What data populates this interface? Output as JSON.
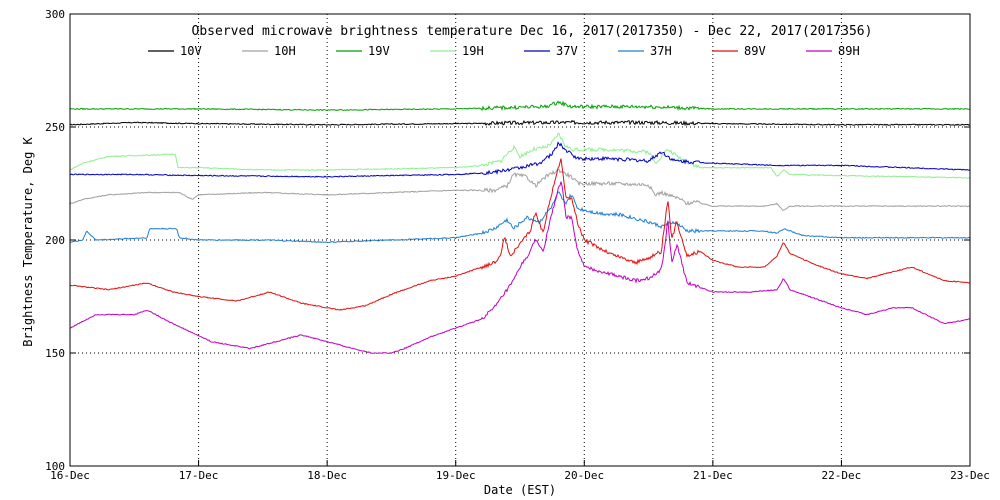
{
  "chart_data": {
    "type": "line",
    "title": "Observed microwave brightness temperature Dec 16, 2017(2017350) - Dec 22, 2017(2017356)",
    "xlabel": "Date (EST)",
    "ylabel": "Brightness Temperature, Deg K",
    "xlim": [
      0,
      7
    ],
    "ylim": [
      100,
      300
    ],
    "x_ticks": [
      {
        "x": 0,
        "label": "16-Dec"
      },
      {
        "x": 1,
        "label": "17-Dec"
      },
      {
        "x": 2,
        "label": "18-Dec"
      },
      {
        "x": 3,
        "label": "19-Dec"
      },
      {
        "x": 4,
        "label": "20-Dec"
      },
      {
        "x": 5,
        "label": "21-Dec"
      },
      {
        "x": 6,
        "label": "22-Dec"
      },
      {
        "x": 7,
        "label": "23-Dec"
      }
    ],
    "y_ticks": [
      {
        "y": 100,
        "label": "100"
      },
      {
        "y": 150,
        "label": "150"
      },
      {
        "y": 200,
        "label": "200"
      },
      {
        "y": 250,
        "label": "250"
      },
      {
        "y": 300,
        "label": "300"
      }
    ],
    "grid": "dotted",
    "legend_position": "top",
    "series": [
      {
        "name": "10V",
        "color": "#000000",
        "points": [
          [
            0,
            251
          ],
          [
            0.5,
            252
          ],
          [
            1,
            251.5
          ],
          [
            2,
            251
          ],
          [
            3,
            251.5
          ],
          [
            3.8,
            252
          ],
          [
            4.5,
            252
          ],
          [
            5,
            251.5
          ],
          [
            6,
            251
          ],
          [
            7,
            251
          ]
        ]
      },
      {
        "name": "10H",
        "color": "#a0a0a0",
        "points": [
          [
            0,
            216
          ],
          [
            0.1,
            218
          ],
          [
            0.3,
            220
          ],
          [
            0.6,
            221
          ],
          [
            0.85,
            221
          ],
          [
            0.95,
            218
          ],
          [
            1.0,
            220
          ],
          [
            1.5,
            221
          ],
          [
            2,
            220
          ],
          [
            2.5,
            221
          ],
          [
            3.0,
            222
          ],
          [
            3.3,
            222
          ],
          [
            3.4,
            224
          ],
          [
            3.45,
            229
          ],
          [
            3.55,
            228
          ],
          [
            3.62,
            224
          ],
          [
            3.7,
            228
          ],
          [
            3.8,
            231
          ],
          [
            3.9,
            228
          ],
          [
            3.95,
            225
          ],
          [
            4.2,
            225
          ],
          [
            4.5,
            224.5
          ],
          [
            4.55,
            220
          ],
          [
            4.6,
            221
          ],
          [
            4.75,
            218
          ],
          [
            4.8,
            216
          ],
          [
            4.85,
            217
          ],
          [
            5,
            215
          ],
          [
            5.4,
            215
          ],
          [
            5.5,
            216
          ],
          [
            5.55,
            213
          ],
          [
            5.6,
            215
          ],
          [
            6,
            215
          ],
          [
            7,
            215
          ]
        ]
      },
      {
        "name": "19V",
        "color": "#00a000",
        "points": [
          [
            0,
            258
          ],
          [
            1,
            258
          ],
          [
            2,
            257.5
          ],
          [
            3,
            258
          ],
          [
            3.7,
            259
          ],
          [
            3.8,
            261
          ],
          [
            3.9,
            259
          ],
          [
            4.5,
            259
          ],
          [
            5,
            258
          ],
          [
            6,
            258
          ],
          [
            7,
            258
          ]
        ]
      },
      {
        "name": "19H",
        "color": "#90ee90",
        "points": [
          [
            0,
            231
          ],
          [
            0.1,
            234
          ],
          [
            0.3,
            237
          ],
          [
            0.6,
            237.5
          ],
          [
            0.82,
            238
          ],
          [
            0.84,
            232
          ],
          [
            1.0,
            232
          ],
          [
            1.5,
            231
          ],
          [
            2,
            231
          ],
          [
            2.5,
            231.5
          ],
          [
            3.0,
            232
          ],
          [
            3.2,
            233
          ],
          [
            3.35,
            235
          ],
          [
            3.4,
            238
          ],
          [
            3.45,
            241
          ],
          [
            3.5,
            237
          ],
          [
            3.6,
            240
          ],
          [
            3.7,
            241
          ],
          [
            3.75,
            243
          ],
          [
            3.8,
            247
          ],
          [
            3.85,
            242
          ],
          [
            3.9,
            240
          ],
          [
            4.2,
            240
          ],
          [
            4.5,
            239
          ],
          [
            4.55,
            234
          ],
          [
            4.65,
            240
          ],
          [
            4.75,
            236
          ],
          [
            4.9,
            232
          ],
          [
            5.2,
            232
          ],
          [
            5.4,
            232
          ],
          [
            5.45,
            232
          ],
          [
            5.5,
            228
          ],
          [
            5.55,
            231
          ],
          [
            5.6,
            229
          ],
          [
            6,
            228.5
          ],
          [
            6.5,
            228
          ],
          [
            7,
            227.5
          ]
        ]
      },
      {
        "name": "37V",
        "color": "#0000c0",
        "points": [
          [
            0,
            229
          ],
          [
            0.5,
            229
          ],
          [
            1,
            228.5
          ],
          [
            2,
            228
          ],
          [
            2.5,
            228.5
          ],
          [
            3,
            229
          ],
          [
            3.3,
            230
          ],
          [
            3.5,
            232
          ],
          [
            3.65,
            234
          ],
          [
            3.75,
            238
          ],
          [
            3.8,
            243
          ],
          [
            3.85,
            240
          ],
          [
            3.95,
            236
          ],
          [
            4.2,
            236
          ],
          [
            4.5,
            235
          ],
          [
            4.6,
            239
          ],
          [
            4.7,
            235
          ],
          [
            5,
            234
          ],
          [
            5.5,
            233
          ],
          [
            6,
            233
          ],
          [
            6.5,
            232
          ],
          [
            7,
            231
          ]
        ]
      },
      {
        "name": "37H",
        "color": "#1e7fd4",
        "points": [
          [
            0,
            199
          ],
          [
            0.1,
            200
          ],
          [
            0.13,
            204
          ],
          [
            0.2,
            200
          ],
          [
            0.6,
            201
          ],
          [
            0.62,
            205
          ],
          [
            0.83,
            205
          ],
          [
            0.85,
            201
          ],
          [
            1,
            200
          ],
          [
            1.5,
            200
          ],
          [
            2,
            199
          ],
          [
            2.5,
            200
          ],
          [
            3,
            201
          ],
          [
            3.2,
            203
          ],
          [
            3.3,
            205
          ],
          [
            3.4,
            209
          ],
          [
            3.45,
            205
          ],
          [
            3.55,
            210
          ],
          [
            3.65,
            208
          ],
          [
            3.75,
            215
          ],
          [
            3.8,
            221
          ],
          [
            3.85,
            216
          ],
          [
            3.9,
            220
          ],
          [
            3.95,
            214
          ],
          [
            4.1,
            212
          ],
          [
            4.3,
            211
          ],
          [
            4.5,
            208
          ],
          [
            4.6,
            206
          ],
          [
            4.7,
            208
          ],
          [
            4.8,
            204
          ],
          [
            5,
            204
          ],
          [
            5.4,
            204
          ],
          [
            5.5,
            203
          ],
          [
            5.55,
            205
          ],
          [
            5.7,
            202
          ],
          [
            6,
            201
          ],
          [
            7,
            201
          ]
        ]
      },
      {
        "name": "89V",
        "color": "#e01010",
        "points": [
          [
            0,
            180
          ],
          [
            0.3,
            178
          ],
          [
            0.6,
            181
          ],
          [
            0.8,
            177
          ],
          [
            1,
            175
          ],
          [
            1.3,
            173
          ],
          [
            1.55,
            177
          ],
          [
            1.8,
            172
          ],
          [
            2,
            170
          ],
          [
            2.1,
            169
          ],
          [
            2.3,
            171
          ],
          [
            2.5,
            176
          ],
          [
            2.8,
            182
          ],
          [
            3,
            184
          ],
          [
            3.2,
            188
          ],
          [
            3.3,
            190
          ],
          [
            3.35,
            193
          ],
          [
            3.38,
            202
          ],
          [
            3.42,
            193
          ],
          [
            3.5,
            198
          ],
          [
            3.58,
            204
          ],
          [
            3.62,
            212
          ],
          [
            3.68,
            203
          ],
          [
            3.72,
            215
          ],
          [
            3.78,
            228
          ],
          [
            3.82,
            236
          ],
          [
            3.86,
            218
          ],
          [
            3.9,
            219
          ],
          [
            3.95,
            207
          ],
          [
            4,
            200
          ],
          [
            4.2,
            194
          ],
          [
            4.4,
            190
          ],
          [
            4.5,
            192
          ],
          [
            4.6,
            195
          ],
          [
            4.62,
            205
          ],
          [
            4.65,
            218
          ],
          [
            4.68,
            200
          ],
          [
            4.72,
            208
          ],
          [
            4.8,
            193
          ],
          [
            4.9,
            195
          ],
          [
            5,
            191
          ],
          [
            5.2,
            188
          ],
          [
            5.4,
            188
          ],
          [
            5.5,
            193
          ],
          [
            5.55,
            199
          ],
          [
            5.6,
            194
          ],
          [
            5.8,
            189
          ],
          [
            6,
            185
          ],
          [
            6.2,
            183
          ],
          [
            6.4,
            186
          ],
          [
            6.55,
            188
          ],
          [
            6.8,
            182
          ],
          [
            7,
            181
          ]
        ]
      },
      {
        "name": "89H",
        "color": "#c000c0",
        "points": [
          [
            0,
            161
          ],
          [
            0.1,
            164
          ],
          [
            0.2,
            167
          ],
          [
            0.5,
            167
          ],
          [
            0.6,
            169
          ],
          [
            0.7,
            166
          ],
          [
            0.8,
            163
          ],
          [
            1.1,
            155
          ],
          [
            1.4,
            152
          ],
          [
            1.6,
            155
          ],
          [
            1.8,
            158
          ],
          [
            2,
            155
          ],
          [
            2.2,
            152
          ],
          [
            2.35,
            150
          ],
          [
            2.5,
            150
          ],
          [
            2.6,
            152
          ],
          [
            2.8,
            157
          ],
          [
            3,
            161
          ],
          [
            3.2,
            165
          ],
          [
            3.3,
            170
          ],
          [
            3.4,
            178
          ],
          [
            3.45,
            182
          ],
          [
            3.5,
            188
          ],
          [
            3.58,
            195
          ],
          [
            3.62,
            200
          ],
          [
            3.68,
            195
          ],
          [
            3.72,
            205
          ],
          [
            3.78,
            219
          ],
          [
            3.82,
            226
          ],
          [
            3.86,
            210
          ],
          [
            3.9,
            210
          ],
          [
            3.95,
            195
          ],
          [
            4,
            188
          ],
          [
            4.2,
            185
          ],
          [
            4.4,
            182
          ],
          [
            4.5,
            183
          ],
          [
            4.6,
            187
          ],
          [
            4.63,
            199
          ],
          [
            4.65,
            209
          ],
          [
            4.68,
            190
          ],
          [
            4.72,
            198
          ],
          [
            4.8,
            181
          ],
          [
            5,
            177
          ],
          [
            5.3,
            177
          ],
          [
            5.5,
            178
          ],
          [
            5.55,
            183
          ],
          [
            5.6,
            178
          ],
          [
            5.8,
            174
          ],
          [
            6,
            170
          ],
          [
            6.2,
            167
          ],
          [
            6.4,
            170
          ],
          [
            6.55,
            170
          ],
          [
            6.8,
            163
          ],
          [
            7,
            165
          ]
        ]
      }
    ]
  }
}
